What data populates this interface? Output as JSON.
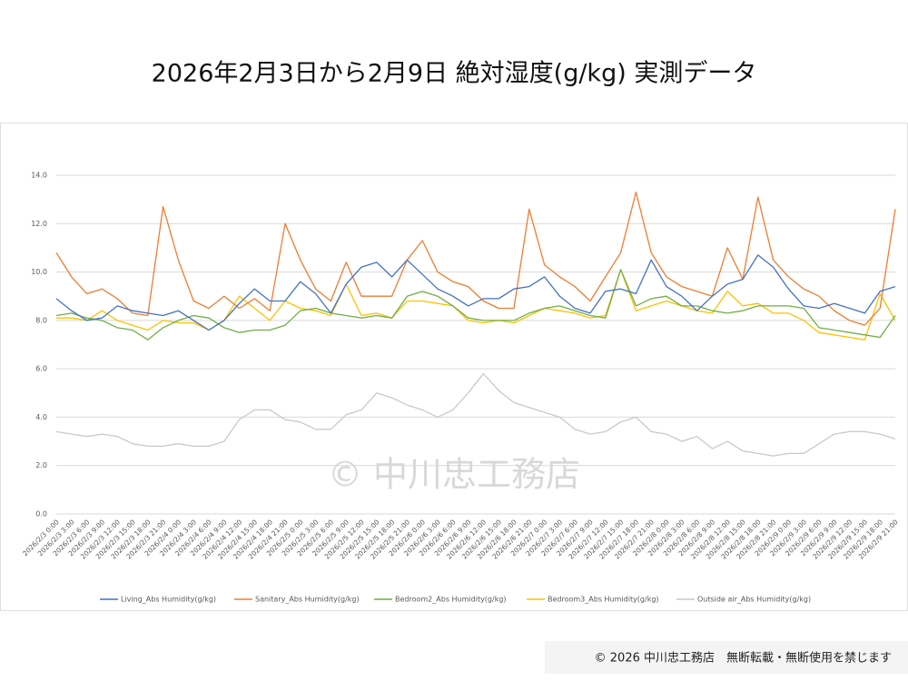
{
  "chart_data": {
    "type": "line",
    "title": "2026年2月3日から2月9日 絶対湿度(g/kg) 実測データ",
    "watermark": "© 中川忠工務店",
    "footer": "© 2026 中川忠工務店　無断転載・無断使用を禁じます",
    "categories": [
      "2026/2/3 0:00",
      "2026/2/3 3:00",
      "2026/2/3 6:00",
      "2026/2/3 9:00",
      "2026/2/3 12:00",
      "2026/2/3 15:00",
      "2026/2/3 18:00",
      "2026/2/3 21:00",
      "2026/2/4 0:00",
      "2026/2/4 3:00",
      "2026/2/4 6:00",
      "2026/2/4 9:00",
      "2026/2/4 12:00",
      "2026/2/4 15:00",
      "2026/2/4 18:00",
      "2026/2/4 21:00",
      "2026/2/5 0:00",
      "2026/2/5 3:00",
      "2026/2/5 6:00",
      "2026/2/5 9:00",
      "2026/2/5 12:00",
      "2026/2/5 15:00",
      "2026/2/5 18:00",
      "2026/2/5 21:00",
      "2026/2/6 0:00",
      "2026/2/6 3:00",
      "2026/2/6 6:00",
      "2026/2/6 9:00",
      "2026/2/6 12:00",
      "2026/2/6 15:00",
      "2026/2/6 18:00",
      "2026/2/6 21:00",
      "2026/2/7 0:00",
      "2026/2/7 3:00",
      "2026/2/7 6:00",
      "2026/2/7 9:00",
      "2026/2/7 12:00",
      "2026/2/7 15:00",
      "2026/2/7 18:00",
      "2026/2/7 21:00",
      "2026/2/8 0:00",
      "2026/2/8 3:00",
      "2026/2/8 6:00",
      "2026/2/8 9:00",
      "2026/2/8 12:00",
      "2026/2/8 15:00",
      "2026/2/8 18:00",
      "2026/2/8 21:00",
      "2026/2/9 0:00",
      "2026/2/9 3:00",
      "2026/2/9 6:00",
      "2026/2/9 9:00",
      "2026/2/9 12:00",
      "2026/2/9 15:00",
      "2026/2/9 18:00",
      "2026/2/9 21:00"
    ],
    "series": [
      {
        "name": "Living_Abs Humidity(g/kg)",
        "color": "#4472c4",
        "values": [
          8.9,
          8.4,
          8.0,
          8.1,
          8.6,
          8.4,
          8.3,
          8.2,
          8.4,
          8.0,
          7.6,
          8.0,
          8.7,
          9.3,
          8.8,
          8.8,
          9.6,
          9.1,
          8.3,
          9.5,
          10.2,
          10.4,
          9.8,
          10.5,
          9.9,
          9.3,
          9.0,
          8.6,
          8.9,
          8.9,
          9.3,
          9.4,
          9.8,
          9.0,
          8.5,
          8.3,
          9.2,
          9.3,
          9.1,
          10.5,
          9.4,
          9.0,
          8.4,
          9.0,
          9.5,
          9.7,
          10.7,
          10.2,
          9.3,
          8.6,
          8.5,
          8.7,
          8.5,
          8.3,
          9.2,
          9.4
        ]
      },
      {
        "name": "Sanitary_Abs Humidity(g/kg)",
        "color": "#ed7d31",
        "values": [
          10.8,
          9.8,
          9.1,
          9.3,
          8.9,
          8.3,
          8.2,
          12.7,
          10.5,
          8.8,
          8.5,
          9.0,
          8.5,
          8.9,
          8.4,
          12.0,
          10.5,
          9.3,
          8.8,
          10.4,
          9.0,
          9.0,
          9.0,
          10.5,
          11.3,
          10.0,
          9.6,
          9.4,
          8.8,
          8.5,
          8.5,
          12.6,
          10.3,
          9.8,
          9.4,
          8.8,
          9.8,
          10.8,
          13.3,
          10.8,
          9.8,
          9.4,
          9.2,
          9.0,
          11.0,
          9.7,
          13.1,
          10.5,
          9.8,
          9.3,
          9.0,
          8.4,
          8.0,
          7.8,
          8.5,
          12.6
        ]
      },
      {
        "name": "Bedroom2_Abs Humidity(g/kg)",
        "color": "#70ad47",
        "values": [
          8.2,
          8.3,
          8.1,
          8.0,
          7.7,
          7.6,
          7.2,
          7.7,
          8.0,
          8.2,
          8.1,
          7.7,
          7.5,
          7.6,
          7.6,
          7.8,
          8.4,
          8.5,
          8.3,
          8.2,
          8.1,
          8.2,
          8.1,
          9.0,
          9.2,
          9.0,
          8.6,
          8.1,
          8.0,
          8.0,
          8.0,
          8.3,
          8.5,
          8.6,
          8.4,
          8.2,
          8.1,
          10.1,
          8.6,
          8.9,
          9.0,
          8.6,
          8.6,
          8.4,
          8.3,
          8.4,
          8.6,
          8.6,
          8.6,
          8.5,
          7.7,
          7.6,
          7.5,
          7.4,
          7.3,
          8.2
        ]
      },
      {
        "name": "Bedroom3_Abs Humidity(g/kg)",
        "color": "#ffc000",
        "values": [
          8.1,
          8.1,
          8.0,
          8.4,
          8.0,
          7.8,
          7.6,
          8.0,
          7.9,
          7.9,
          7.6,
          8.0,
          9.0,
          8.5,
          8.0,
          8.8,
          8.5,
          8.4,
          8.2,
          9.5,
          8.2,
          8.3,
          8.1,
          8.8,
          8.8,
          8.7,
          8.6,
          8.0,
          7.9,
          8.0,
          7.9,
          8.2,
          8.5,
          8.4,
          8.3,
          8.1,
          8.2,
          10.1,
          8.4,
          8.6,
          8.8,
          8.6,
          8.4,
          8.3,
          9.2,
          8.6,
          8.7,
          8.3,
          8.3,
          8.0,
          7.5,
          7.4,
          7.3,
          7.2,
          9.1,
          8.0
        ]
      },
      {
        "name": "Outside air_Abs Humidity(g/kg)",
        "color": "#c9c9c9",
        "values": [
          3.4,
          3.3,
          3.2,
          3.3,
          3.2,
          2.9,
          2.8,
          2.8,
          2.9,
          2.8,
          2.8,
          3.0,
          3.9,
          4.3,
          4.3,
          3.9,
          3.8,
          3.5,
          3.5,
          4.1,
          4.3,
          5.0,
          4.8,
          4.5,
          4.3,
          4.0,
          4.3,
          5.0,
          5.8,
          5.1,
          4.6,
          4.4,
          4.2,
          4.0,
          3.5,
          3.3,
          3.4,
          3.8,
          4.0,
          3.4,
          3.3,
          3.0,
          3.2,
          2.7,
          3.0,
          2.6,
          2.5,
          2.4,
          2.5,
          2.5,
          2.9,
          3.3,
          3.4,
          3.4,
          3.3,
          3.1
        ]
      }
    ],
    "ylim": [
      0,
      14
    ],
    "yticks": [
      {
        "value": 0,
        "label": "0.0"
      },
      {
        "value": 2,
        "label": "2.0"
      },
      {
        "value": 4,
        "label": "4.0"
      },
      {
        "value": 6,
        "label": "6.0"
      },
      {
        "value": 8,
        "label": "8.0"
      },
      {
        "value": 10,
        "label": "10.0"
      },
      {
        "value": 12,
        "label": "12.0"
      },
      {
        "value": 14,
        "label": "14.0"
      }
    ],
    "grid": true,
    "legend": "bottom"
  }
}
